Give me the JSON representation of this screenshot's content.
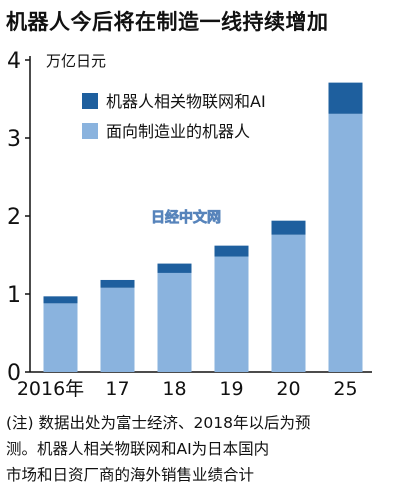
{
  "title": "机器人今后将在制造一线持续增加",
  "chart_data": {
    "type": "bar",
    "stacked": true,
    "unit_label": "万亿日元",
    "categories": [
      "2016年",
      "17",
      "18",
      "19",
      "20",
      "25"
    ],
    "ylim": [
      0,
      4
    ],
    "yticks": [
      0,
      1,
      2,
      3,
      4
    ],
    "series": [
      {
        "name": "面向制造业的机器人",
        "values": [
          0.88,
          1.08,
          1.27,
          1.48,
          1.76,
          3.31
        ],
        "color": "#8ab3de"
      },
      {
        "name": "机器人相关物联网和AI",
        "values": [
          0.09,
          0.1,
          0.12,
          0.14,
          0.18,
          0.4
        ],
        "color": "#1e5f9e"
      }
    ],
    "legend": [
      "机器人相关物联网和AI",
      "面向制造业的机器人"
    ],
    "legend_position": "upper-left",
    "watermark": "日经中文网"
  },
  "note_lines": [
    "(注) 数据出处为富士经济、2018年以后为预",
    "测。机器人相关物联网和AI为日本国内",
    "市场和日资厂商的海外销售业绩合计"
  ]
}
